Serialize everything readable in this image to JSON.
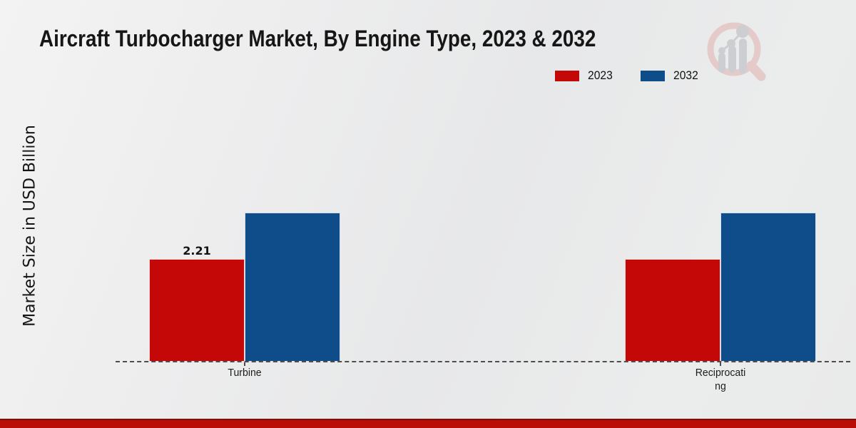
{
  "page": {
    "title": "Aircraft Turbocharger Market, By Engine Type, 2023 & 2032"
  },
  "y_axis": {
    "label": "Market Size in USD Billion"
  },
  "legend": [
    {
      "label": "2023",
      "color": "#c40707"
    },
    {
      "label": "2032",
      "color": "#0e4d8a"
    }
  ],
  "chart_data": {
    "type": "bar",
    "title": "Aircraft Turbocharger Market, By Engine Type, 2023 & 2032",
    "xlabel": "",
    "ylabel": "Market Size in USD Billion",
    "categories": [
      "Turbine",
      "Reciprocating"
    ],
    "categories_display": [
      "Turbine",
      "Reciprocati\nng"
    ],
    "series": [
      {
        "name": "2023",
        "color": "#c40707",
        "values": [
          2.21,
          2.21
        ]
      },
      {
        "name": "2032",
        "color": "#0e4d8a",
        "values": [
          3.21,
          3.21
        ]
      }
    ],
    "bar_labels": [
      {
        "category_index": 0,
        "series_index": 0,
        "text": "2.21"
      }
    ],
    "ylim": [
      0,
      3.5
    ],
    "grid": false,
    "legend_position": "top-right",
    "baseline_style": "dashed"
  },
  "colors": {
    "series_2023": "#c40707",
    "series_2032": "#0e4d8a",
    "bottom_strip": "#bb0d08",
    "bottom_strip_edge": "#7e0e08",
    "baseline": "#4d4d4d",
    "background": "#eaebeb",
    "text": "#161616"
  },
  "branding": {
    "logo_icon": "magnifier-bar-chart-logo"
  }
}
